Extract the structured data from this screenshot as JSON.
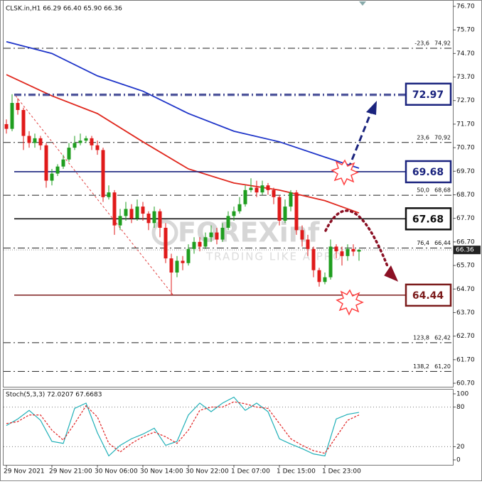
{
  "chart_data": {
    "type": "candlestick",
    "title": "CLSK.in,H1  66.29 66.40 65.90 66.36",
    "watermark": "FOREXinf",
    "watermark_sub": "TRADING LIKE A PRO",
    "categories": [
      "29 Nov 2021",
      null,
      null,
      null,
      null,
      null,
      null,
      null,
      "29 Nov 21:00",
      null,
      null,
      null,
      null,
      null,
      null,
      null,
      "30 Nov 06:00",
      null,
      null,
      null,
      null,
      null,
      null,
      null,
      "30 Nov 14:00",
      null,
      null,
      null,
      null,
      null,
      null,
      null,
      "30 Nov 22:00",
      null,
      null,
      null,
      null,
      null,
      null,
      null,
      "1 Dec 07:00",
      null,
      null,
      null,
      null,
      null,
      null,
      null,
      "1 Dec 15:00",
      null,
      null,
      null,
      null,
      null,
      null,
      null,
      "1 Dec 23:00",
      null,
      null,
      null,
      null,
      null,
      null
    ],
    "open": [
      71.7,
      71.5,
      72.6,
      72.3,
      71.2,
      70.9,
      71.1,
      70.8,
      69.3,
      69.6,
      69.9,
      70.2,
      70.7,
      70.9,
      71.0,
      71.1,
      70.8,
      70.6,
      68.6,
      68.8,
      67.4,
      67.8,
      68.1,
      67.7,
      68.2,
      67.9,
      67.5,
      68.0,
      67.3,
      66.0,
      65.4,
      65.9,
      65.8,
      66.4,
      66.7,
      66.5,
      66.9,
      67.1,
      66.8,
      67.3,
      67.8,
      68.0,
      68.3,
      68.9,
      69.0,
      68.8,
      69.1,
      68.9,
      68.6,
      67.6,
      68.2,
      68.8,
      67.2,
      66.8,
      66.4,
      65.5,
      65.0,
      65.2,
      66.5,
      66.3,
      66.1,
      66.4,
      66.29
    ],
    "high": [
      71.9,
      72.97,
      72.8,
      72.4,
      71.4,
      71.3,
      71.2,
      70.9,
      69.8,
      70.0,
      70.4,
      70.9,
      71.2,
      71.3,
      71.2,
      71.2,
      71.0,
      70.7,
      69.1,
      68.9,
      68.1,
      68.4,
      68.3,
      68.5,
      68.4,
      68.0,
      68.2,
      68.1,
      67.5,
      66.2,
      66.1,
      66.1,
      66.6,
      66.9,
      66.9,
      67.1,
      67.4,
      67.3,
      67.5,
      68.0,
      68.2,
      68.6,
      69.1,
      69.4,
      69.3,
      69.3,
      69.2,
      69.0,
      68.7,
      68.5,
      68.9,
      68.9,
      67.4,
      67.0,
      66.5,
      65.6,
      65.4,
      66.8,
      66.6,
      66.5,
      66.6,
      66.6,
      66.4
    ],
    "low": [
      71.3,
      71.4,
      72.1,
      70.6,
      70.7,
      70.7,
      70.6,
      69.0,
      69.1,
      69.5,
      69.8,
      70.1,
      70.6,
      70.8,
      70.9,
      70.6,
      70.4,
      68.4,
      68.5,
      67.0,
      67.2,
      67.6,
      67.5,
      67.6,
      67.6,
      67.2,
      67.3,
      66.9,
      65.8,
      64.44,
      65.2,
      65.5,
      65.7,
      66.2,
      66.3,
      66.4,
      66.7,
      66.6,
      66.7,
      67.2,
      67.6,
      67.9,
      68.2,
      68.8,
      68.6,
      68.7,
      68.7,
      68.3,
      67.4,
      67.5,
      68.0,
      67.0,
      66.5,
      66.1,
      65.2,
      64.8,
      64.9,
      65.1,
      66.0,
      65.7,
      65.9,
      66.1,
      65.9
    ],
    "close": [
      71.5,
      72.6,
      72.3,
      71.2,
      70.9,
      71.1,
      70.8,
      69.3,
      69.6,
      69.9,
      70.2,
      70.7,
      70.9,
      71.0,
      71.1,
      70.8,
      70.6,
      68.6,
      68.8,
      67.4,
      67.8,
      68.1,
      67.7,
      68.2,
      67.9,
      67.5,
      68.0,
      67.3,
      66.0,
      65.4,
      65.9,
      65.8,
      66.4,
      66.7,
      66.5,
      66.9,
      67.1,
      66.8,
      67.3,
      67.8,
      68.0,
      68.3,
      68.9,
      69.0,
      68.8,
      69.1,
      68.9,
      68.6,
      67.6,
      68.2,
      68.8,
      67.2,
      66.8,
      66.4,
      65.5,
      65.0,
      65.2,
      66.5,
      66.3,
      66.1,
      66.4,
      66.29,
      66.36
    ],
    "up_color": "#1f9e1f",
    "down_color": "#e01a1a",
    "ma": [
      {
        "color": "#1f35c9",
        "x": [
          0,
          8,
          16,
          24,
          32,
          40,
          48,
          56,
          62
        ],
        "values": [
          75.2,
          74.7,
          73.75,
          73.1,
          72.15,
          71.4,
          70.95,
          70.3,
          69.83
        ]
      },
      {
        "color": "#e0281e",
        "x": [
          0,
          8,
          16,
          24,
          32,
          40,
          48,
          56,
          62
        ],
        "values": [
          73.8,
          72.9,
          72.15,
          70.95,
          69.8,
          69.2,
          68.9,
          68.45,
          67.93
        ]
      }
    ],
    "levels": [
      {
        "label": "72.97",
        "value": 72.97,
        "color": "#1a237e",
        "dash": "10 4 2 4"
      },
      {
        "label": "69.68",
        "value": 69.68,
        "color": "#1a237e",
        "dash": "none"
      },
      {
        "label": "67.68",
        "value": 67.68,
        "color": "#111111",
        "dash": "none"
      },
      {
        "label": "64.44",
        "value": 64.44,
        "color": "#7b1a1a",
        "dash": "none"
      }
    ],
    "fib": [
      {
        "level": "-23,6",
        "label": "74,92",
        "value": 74.92
      },
      {
        "level": "23,6",
        "label": "70,92",
        "value": 70.92
      },
      {
        "level": "50,0",
        "label": "68,68",
        "value": 68.68
      },
      {
        "level": "76,4",
        "label": "66,44",
        "value": 66.44
      },
      {
        "level": "123,8",
        "label": "62,42",
        "value": 62.42
      },
      {
        "level": "138,2",
        "label": "61,20",
        "value": 61.2
      }
    ],
    "last_price": {
      "label": "66.36",
      "value": 66.36
    },
    "ylim": [
      60.55,
      76.97
    ],
    "yticks": [
      {
        "value": 76.7,
        "label": "76.70"
      },
      {
        "value": 75.7,
        "label": "75.70"
      },
      {
        "value": 74.7,
        "label": "74.70"
      },
      {
        "value": 73.7,
        "label": "73.70"
      },
      {
        "value": 72.7,
        "label": "72.70"
      },
      {
        "value": 71.7,
        "label": "71.70"
      },
      {
        "value": 70.7,
        "label": "70.70"
      },
      {
        "value": 69.7,
        "label": "69.70"
      },
      {
        "value": 68.7,
        "label": "68.70"
      },
      {
        "value": 67.7,
        "label": "67.70"
      },
      {
        "value": 66.7,
        "label": "66.70"
      },
      {
        "value": 65.7,
        "label": "65.70"
      },
      {
        "value": 64.7,
        "label": "64.70"
      },
      {
        "value": 63.7,
        "label": "63.70"
      },
      {
        "value": 62.7,
        "label": "62.70"
      },
      {
        "value": 61.7,
        "label": "61.70"
      },
      {
        "value": 60.7,
        "label": "60.70"
      }
    ],
    "stochastic": {
      "title": "Stoch(5,3,3) 72.0207 67.6683",
      "x": [
        0,
        2,
        4,
        6,
        8,
        10,
        12,
        14,
        16,
        18,
        20,
        22,
        24,
        26,
        28,
        30,
        32,
        34,
        36,
        38,
        40,
        42,
        44,
        46,
        48,
        50,
        52,
        54,
        56,
        58,
        60,
        62
      ],
      "main": {
        "color": "#20b0b8",
        "values": [
          52,
          62,
          75,
          60,
          28,
          25,
          78,
          86,
          41,
          6,
          22,
          32,
          39,
          48,
          22,
          28,
          68,
          86,
          73,
          86,
          95,
          75,
          86,
          73,
          32,
          24,
          17,
          9,
          6,
          62,
          69,
          72
        ]
      },
      "signal": {
        "color": "#e02020",
        "values": [
          55,
          58,
          68,
          68,
          45,
          30,
          55,
          82,
          65,
          25,
          12,
          25,
          35,
          42,
          35,
          25,
          45,
          75,
          80,
          80,
          88,
          85,
          80,
          78,
          55,
          32,
          22,
          14,
          10,
          35,
          60,
          68
        ]
      },
      "ylim": [
        -7.5,
        107.5
      ],
      "yticks": [
        100,
        80,
        20,
        0
      ],
      "levels": [
        80,
        20
      ]
    }
  }
}
